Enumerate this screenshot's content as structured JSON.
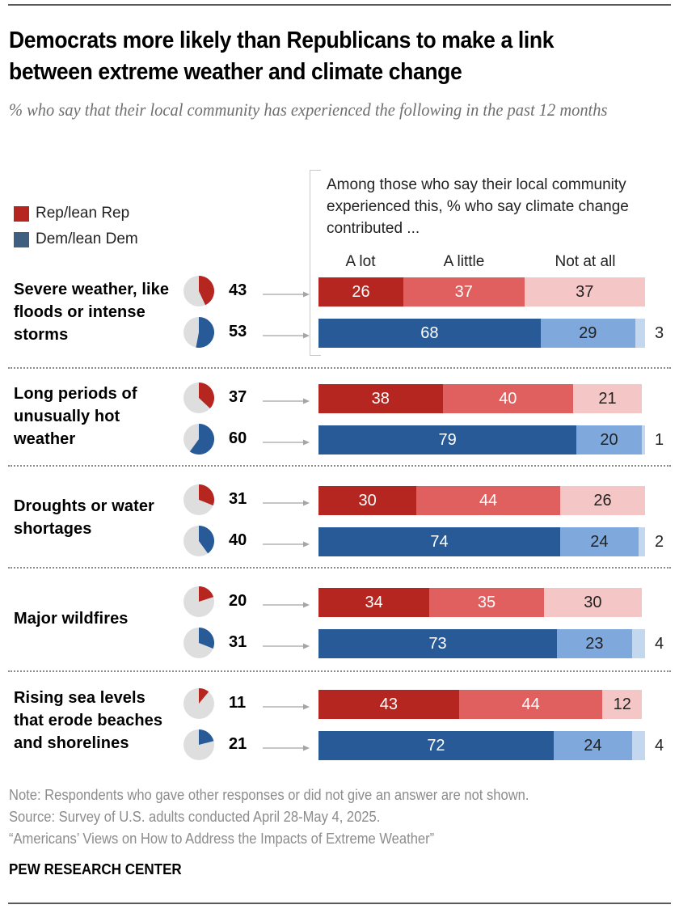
{
  "title": "Democrats more likely than Republicans to make a link between extreme weather and climate change",
  "subtitle": "% who say that their local community has experienced the following in the past 12 months",
  "legend": [
    {
      "label": "Rep/lean Rep",
      "color": "#b52620"
    },
    {
      "label": "Dem/lean Dem",
      "color": "#3e5f80"
    }
  ],
  "column_note": "Among those who say their local community experienced this, % who say climate change contributed ...",
  "colors": {
    "rep": [
      "#b52620",
      "#e06060",
      "#f5c6c6"
    ],
    "dem": [
      "#275a96",
      "#7fa8dc",
      "#c3d7ef"
    ],
    "pie_bg": "#dedede",
    "arrow": "#a5a5a5"
  },
  "chart_data": {
    "type": "bar",
    "orientation": "horizontal-stacked",
    "title": "Democrats more likely than Republicans to make a link between extreme weather and climate change",
    "subtitle": "% who say that their local community has experienced the following in the past 12 months",
    "segments": [
      "A lot",
      "A little",
      "Not at all"
    ],
    "groups": [
      "Rep/lean Rep",
      "Dem/lean Dem"
    ],
    "xlim": [
      0,
      100
    ],
    "categories": [
      {
        "label": "Severe weather, like floods or intense storms",
        "rep": {
          "experienced": 43,
          "values": [
            26,
            37,
            37
          ]
        },
        "dem": {
          "experienced": 53,
          "values": [
            68,
            29,
            3
          ]
        }
      },
      {
        "label": "Long periods of unusually hot weather",
        "rep": {
          "experienced": 37,
          "values": [
            38,
            40,
            21
          ]
        },
        "dem": {
          "experienced": 60,
          "values": [
            79,
            20,
            1
          ]
        }
      },
      {
        "label": "Droughts or water shortages",
        "rep": {
          "experienced": 31,
          "values": [
            30,
            44,
            26
          ]
        },
        "dem": {
          "experienced": 40,
          "values": [
            74,
            24,
            2
          ]
        }
      },
      {
        "label": "Major wildfires",
        "rep": {
          "experienced": 20,
          "values": [
            34,
            35,
            30
          ]
        },
        "dem": {
          "experienced": 31,
          "values": [
            73,
            23,
            4
          ]
        }
      },
      {
        "label": "Rising sea levels that erode beaches and shorelines",
        "rep": {
          "experienced": 11,
          "values": [
            43,
            44,
            12
          ]
        },
        "dem": {
          "experienced": 21,
          "values": [
            72,
            24,
            4
          ]
        }
      }
    ]
  },
  "footer": {
    "note": "Note: Respondents who gave other responses or did not give an answer are not shown.",
    "source": "Source: Survey of U.S. adults conducted April 28-May 4, 2025.",
    "report": "“Americans’ Views on How to Address the Impacts of Extreme Weather”",
    "brand": "PEW RESEARCH CENTER"
  }
}
